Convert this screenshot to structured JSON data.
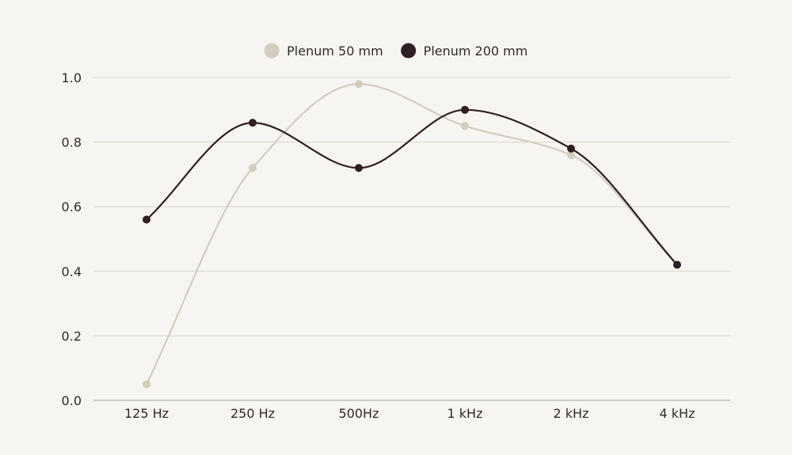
{
  "chart_data": {
    "type": "line",
    "categories": [
      "125 Hz",
      "250 Hz",
      "500Hz",
      "1 kHz",
      "2 kHz",
      "4 kHz"
    ],
    "series": [
      {
        "name": "Plenum 50 mm",
        "color": "#d3cdbf",
        "values": [
          0.05,
          0.72,
          0.98,
          0.85,
          0.76,
          0.42
        ]
      },
      {
        "name": "Plenum 200 mm",
        "color": "#2f1f22",
        "values": [
          0.56,
          0.86,
          0.72,
          0.9,
          0.78,
          0.42
        ]
      }
    ],
    "yticks": [
      "0.0",
      "0.2",
      "0.4",
      "0.6",
      "0.8",
      "1.0"
    ],
    "ylim": [
      0,
      1.0
    ],
    "grid": true,
    "legend_position": "top-center",
    "smooth": true
  }
}
